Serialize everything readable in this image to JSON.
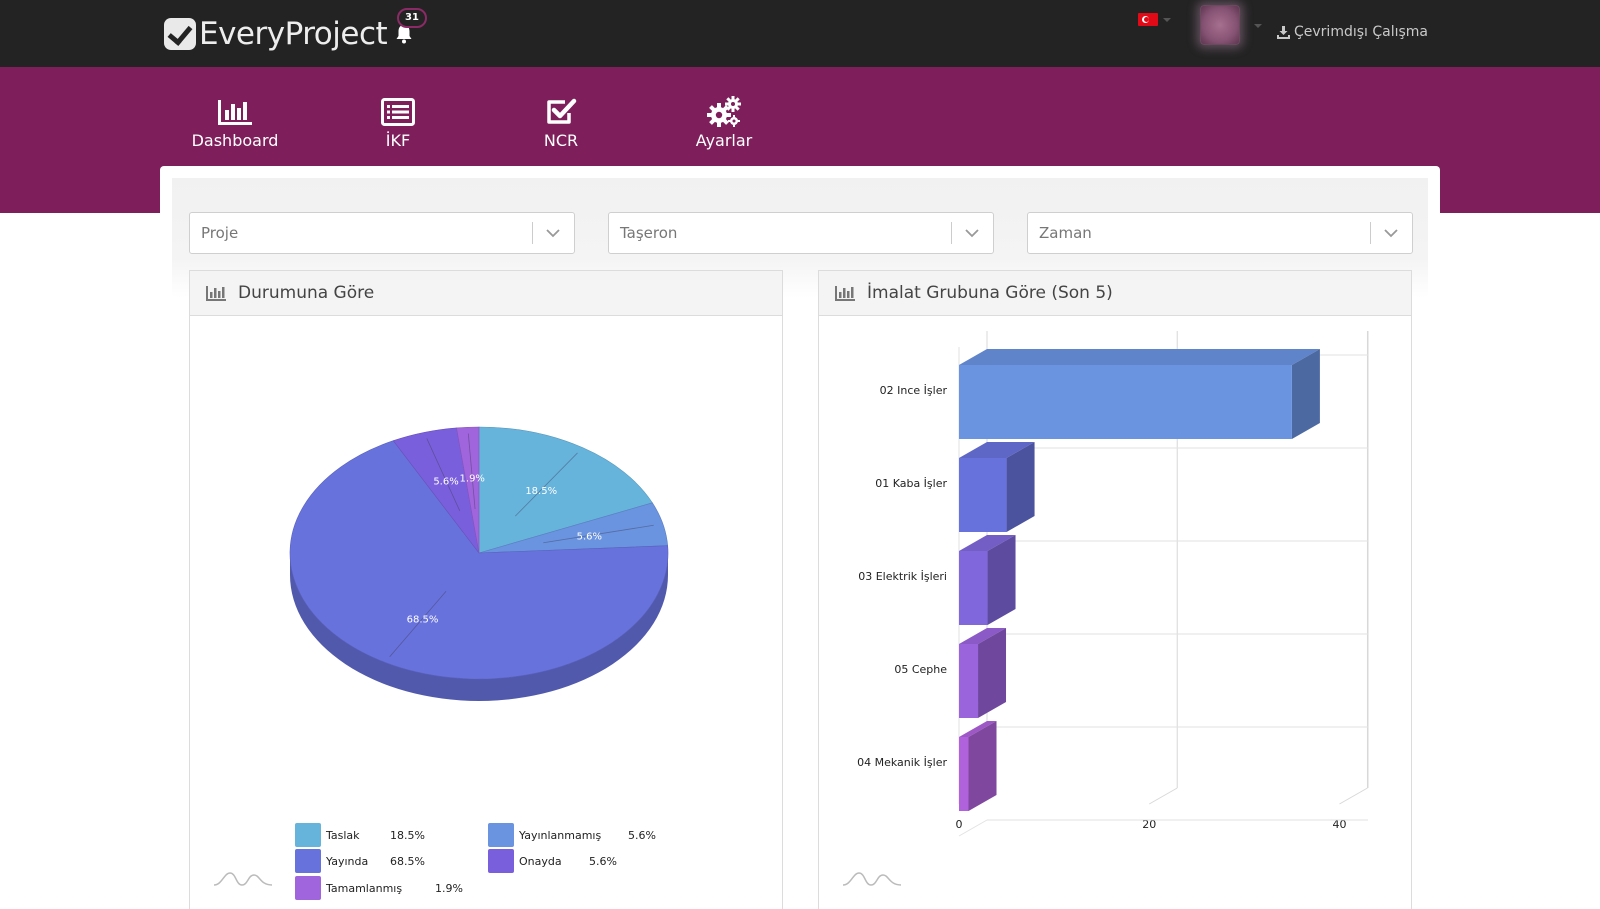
{
  "header": {
    "logo_text": "EveryProject",
    "notification_count": "31",
    "offline_label": "Çevrimdışı Çalışma"
  },
  "nav": {
    "items": [
      {
        "label": "Dashboard",
        "icon": "bar-chart-icon"
      },
      {
        "label": "İKF",
        "icon": "list-icon"
      },
      {
        "label": "NCR",
        "icon": "checkbox-icon"
      },
      {
        "label": "Ayarlar",
        "icon": "gears-icon"
      }
    ]
  },
  "filters": {
    "project_placeholder": "Proje",
    "subcontractor_placeholder": "Taşeron",
    "time_placeholder": "Zaman"
  },
  "panels": {
    "status_title": "Durumuna Göre",
    "group_title": "İmalat Grubuna Göre (Son 5)"
  },
  "colors": {
    "topbar": "#232323",
    "nav_band": "#7e1f5b",
    "taslak": "#66b3dc",
    "yayinlanmamis": "#6a93e0",
    "yayinda": "#6872dc",
    "onayda": "#7a5fdc",
    "tamamlanmis": "#a064dc"
  },
  "chart_data": [
    {
      "type": "pie",
      "title": "Durumuna Göre",
      "slices": [
        {
          "label": "Taslak",
          "value": 18.5,
          "display": "18.5%"
        },
        {
          "label": "Yayınlanmamış",
          "value": 5.6,
          "display": "5.6%"
        },
        {
          "label": "Yayında",
          "value": 68.5,
          "display": "68.5%"
        },
        {
          "label": "Onayda",
          "value": 5.6,
          "display": "5.6%"
        },
        {
          "label": "Tamamlanmış",
          "value": 1.9,
          "display": "1.9%"
        }
      ]
    },
    {
      "type": "bar",
      "title": "İmalat Grubuna Göre (Son 5)",
      "orientation": "horizontal",
      "categories": [
        "02 Ince İşler",
        "01 Kaba İşler",
        "03 Elektrik İşleri",
        "05 Cephe",
        "04 Mekanik İşler"
      ],
      "values": [
        35,
        5,
        3,
        2,
        1
      ],
      "xlim": [
        0,
        43
      ],
      "xticks": [
        "0",
        "20",
        "40"
      ],
      "grid": true
    }
  ]
}
